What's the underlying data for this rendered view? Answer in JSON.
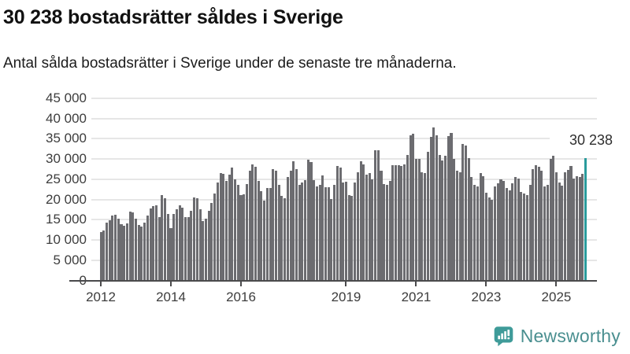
{
  "header": {
    "title": "30 238 bostadsrätter såldes i Sverige",
    "subtitle": "Antal sålda bostadsrätter i Sverige under de senaste tre månaderna."
  },
  "chart_data": {
    "type": "bar",
    "title": "30 238 bostadsrätter såldes i Sverige",
    "subtitle": "Antal sålda bostadsrätter i Sverige under de senaste tre månaderna.",
    "unit": "bostadsrätter per 3-månadersperiod",
    "frequency": "monthly",
    "start_year": 2012,
    "end_label": "2025-11",
    "values": [
      12000,
      12400,
      14300,
      14900,
      16100,
      16300,
      15300,
      13900,
      13500,
      14000,
      17000,
      16900,
      15300,
      13700,
      13300,
      14300,
      16000,
      17800,
      18300,
      18500,
      15600,
      21000,
      20400,
      16500,
      13000,
      16400,
      17500,
      18600,
      18000,
      15600,
      15600,
      17200,
      20500,
      20400,
      17500,
      14700,
      15300,
      17300,
      19200,
      21500,
      24200,
      26500,
      26300,
      24500,
      26200,
      27800,
      25000,
      23600,
      21000,
      21200,
      23900,
      27200,
      28600,
      28100,
      24600,
      22000,
      19700,
      22800,
      22800,
      27600,
      27200,
      23600,
      20800,
      20400,
      25500,
      27100,
      29400,
      27600,
      23700,
      24200,
      24700,
      29800,
      29200,
      24700,
      23300,
      23700,
      26000,
      23000,
      23000,
      20200,
      23600,
      28200,
      27800,
      24200,
      24400,
      21000,
      20800,
      24200,
      26800,
      29400,
      28600,
      26200,
      26500,
      25000,
      32200,
      32100,
      27100,
      23900,
      23600,
      24600,
      28400,
      28400,
      28400,
      28200,
      28600,
      31000,
      35900,
      36200,
      30100,
      30000,
      26800,
      26500,
      31700,
      35400,
      37800,
      35800,
      31000,
      29700,
      30800,
      35600,
      36400,
      30000,
      27200,
      26800,
      33700,
      33300,
      30200,
      25500,
      23600,
      23300,
      26500,
      25800,
      21700,
      20500,
      19900,
      23300,
      24000,
      25000,
      24600,
      22800,
      22300,
      24000,
      25500,
      25200,
      21800,
      21500,
      21000,
      23600,
      27600,
      28400,
      28000,
      27100,
      23300,
      23600,
      30000,
      30800,
      26800,
      24200,
      23400,
      26800,
      27400,
      28200,
      25200,
      25800,
      25500,
      26300,
      30238
    ],
    "bar_color": "#6c6c70",
    "highlight": {
      "index": 166,
      "value": 30238,
      "label": "30 238",
      "color": "#2a9b9c"
    },
    "y_axis": {
      "min": 0,
      "max": 45000,
      "tick_step": 5000,
      "tick_values": [
        0,
        5000,
        10000,
        15000,
        20000,
        25000,
        30000,
        35000,
        40000,
        45000
      ],
      "tick_labels": [
        "0",
        "5 000",
        "10 000",
        "15 000",
        "20 000",
        "25 000",
        "30 000",
        "35 000",
        "40 000",
        "45 000"
      ]
    },
    "x_axis": {
      "tick_years": [
        2012,
        2014,
        2016,
        2019,
        2021,
        2023,
        2025
      ],
      "tick_labels": [
        "2012",
        "2014",
        "2016",
        "2019",
        "2021",
        "2023",
        "2025"
      ]
    },
    "grid": true,
    "legend": "none"
  },
  "annotation": {
    "label": "30 238"
  },
  "footer": {
    "brand": "Newsworthy",
    "brand_text_color": "#4a8f90",
    "logo_color": "#3f9b99",
    "logo_icon": "newsworthy-chart-bubble-icon"
  }
}
